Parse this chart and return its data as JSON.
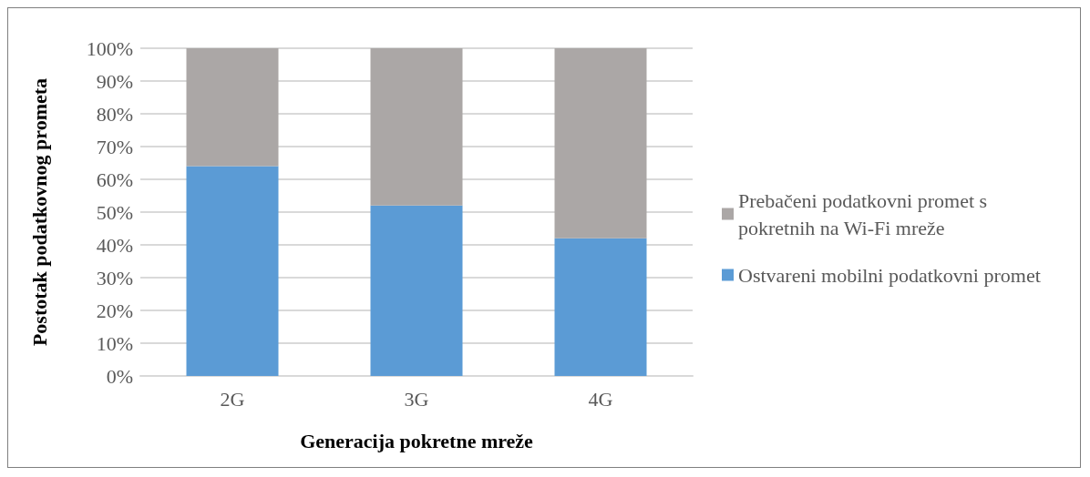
{
  "chart_data": {
    "type": "bar",
    "stacked": true,
    "xlabel": "Generacija pokretne mreže",
    "ylabel": "Postotak podatkovnog prometa",
    "categories": [
      "2G",
      "3G",
      "4G"
    ],
    "series": [
      {
        "name": "Ostvareni mobilni podatkovni promet",
        "color": "#5b9bd5",
        "values": [
          64,
          52,
          42
        ]
      },
      {
        "name": "Prebačeni podatkovni promet s pokretnih na Wi-Fi mreže",
        "color": "#aba7a6",
        "values": [
          36,
          48,
          58
        ]
      }
    ],
    "ylim": [
      0,
      100
    ],
    "yticks": [
      {
        "value": 0,
        "label": "0%"
      },
      {
        "value": 10,
        "label": "10%"
      },
      {
        "value": 20,
        "label": "20%"
      },
      {
        "value": 30,
        "label": "30%"
      },
      {
        "value": 40,
        "label": "40%"
      },
      {
        "value": 50,
        "label": "50%"
      },
      {
        "value": 60,
        "label": "60%"
      },
      {
        "value": 70,
        "label": "70%"
      },
      {
        "value": 80,
        "label": "80%"
      },
      {
        "value": 90,
        "label": "90%"
      },
      {
        "value": 100,
        "label": "100%"
      }
    ],
    "grid": "y",
    "legend": "right"
  }
}
